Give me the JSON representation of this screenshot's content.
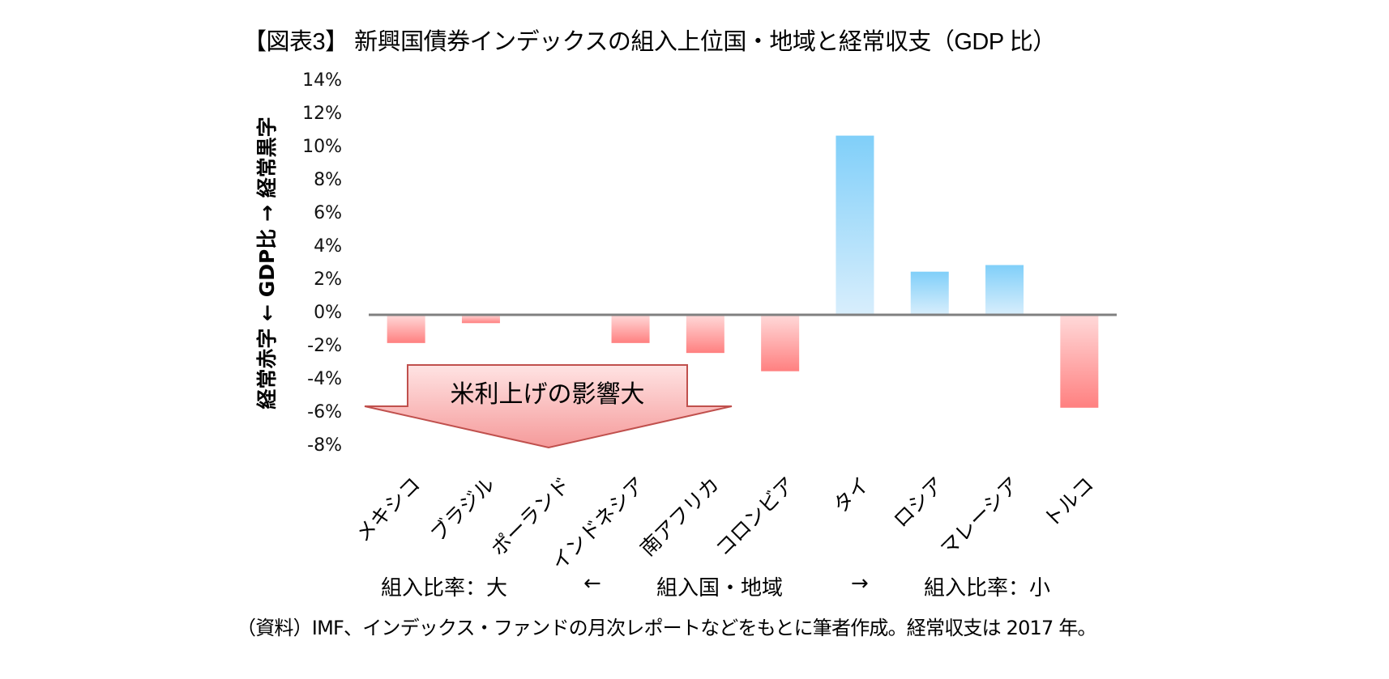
{
  "title": "【図表3】 新興国債券インデックスの組入上位国・地域と経常収支（GDP 比）",
  "y_axis_title": "経常赤字 ← GDP比 → 経常黒字",
  "y_ticks": [
    "14%",
    "12%",
    "10%",
    "8%",
    "6%",
    "4%",
    "2%",
    "0%",
    "-2%",
    "-4%",
    "-6%",
    "-8%"
  ],
  "callout": {
    "text": "米利上げの影響大",
    "icon": "down-arrow-icon",
    "color": "#f7a8a8"
  },
  "footer": {
    "left": "組入比率：大",
    "left_arrow": "←",
    "center": "組入国・地域",
    "right_arrow": "→",
    "right": "組入比率：小"
  },
  "source": "（資料）IMF、インデックス・ファンドの月次レポートなどをもとに筆者作成。経常収支は 2017 年。",
  "colors": {
    "positive_top": "#80cff9",
    "positive_bottom": "#d8eefc",
    "negative_top": "#ffd9d9",
    "negative_bottom": "#ff8080",
    "axis": "#808080"
  },
  "chart_data": {
    "type": "bar",
    "title": "【図表3】 新興国債券インデックスの組入上位国・地域と経常収支（GDP 比）",
    "xlabel": "組入比率：大 ← 組入国・地域 → 組入比率：小",
    "ylabel": "経常赤字 ← GDP比 → 経常黒字",
    "categories": [
      "メキシコ",
      "ブラジル",
      "ポーランド",
      "インドネシア",
      "南アフリカ",
      "コロンビア",
      "タイ",
      "ロシア",
      "マレーシア",
      "トルコ"
    ],
    "values": [
      -1.7,
      -0.5,
      0.0,
      -1.7,
      -2.3,
      -3.4,
      10.8,
      2.6,
      3.0,
      -5.6
    ],
    "unit": "%",
    "ylim": [
      -8,
      14
    ],
    "ytick_step": 2,
    "grid": false,
    "legend": null,
    "annotations": [
      "米利上げの影響大"
    ]
  }
}
